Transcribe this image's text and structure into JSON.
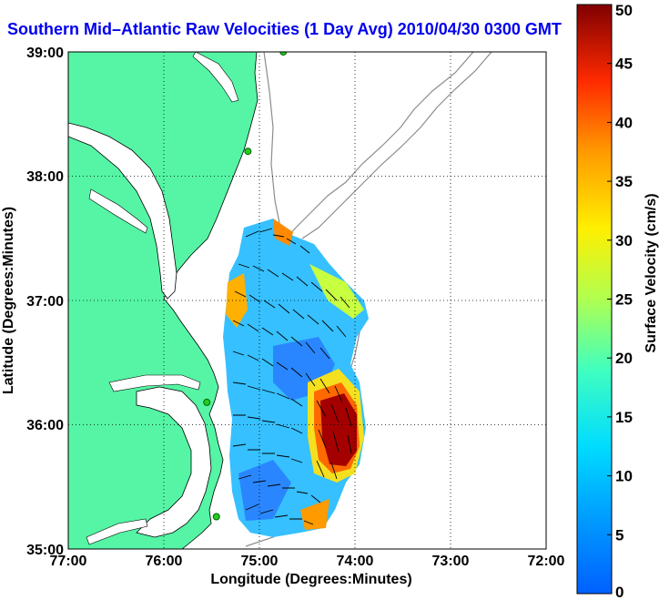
{
  "title": "Southern Mid–Atlantic Raw Velocities (1 Day Avg) 2010/04/30 0300 GMT",
  "map": {
    "xlabel": "Longitude (Degrees:Minutes)",
    "ylabel": "Latitude (Degrees:Minutes)",
    "lon_ticks": [
      "77:00",
      "76:00",
      "75:00",
      "74:00",
      "73:00",
      "72:00"
    ],
    "lat_ticks": [
      "39:00",
      "38:00",
      "37:00",
      "36:00",
      "35:00"
    ],
    "lon_range_deg_west": [
      77,
      72
    ],
    "lat_range_deg_north": [
      35,
      39
    ],
    "colors": {
      "land": "#55f5a5",
      "water": "#ffffff",
      "coastline": "#000000",
      "bathymetry": "#8c8c8c",
      "grid": "#000000",
      "station": "#22cc22"
    },
    "stations": [
      {
        "lon": -74.75,
        "lat": 39.0
      },
      {
        "lon": -75.12,
        "lat": 38.2
      },
      {
        "lon": -75.55,
        "lat": 36.18
      },
      {
        "lon": -75.45,
        "lat": 35.26
      }
    ]
  },
  "colorbar": {
    "label": "Surface Velocity (cm/s)",
    "min": 0,
    "max": 50,
    "ticks": [
      "0",
      "5",
      "10",
      "15",
      "20",
      "25",
      "30",
      "35",
      "40",
      "45",
      "50"
    ],
    "colormap": "jet"
  }
}
